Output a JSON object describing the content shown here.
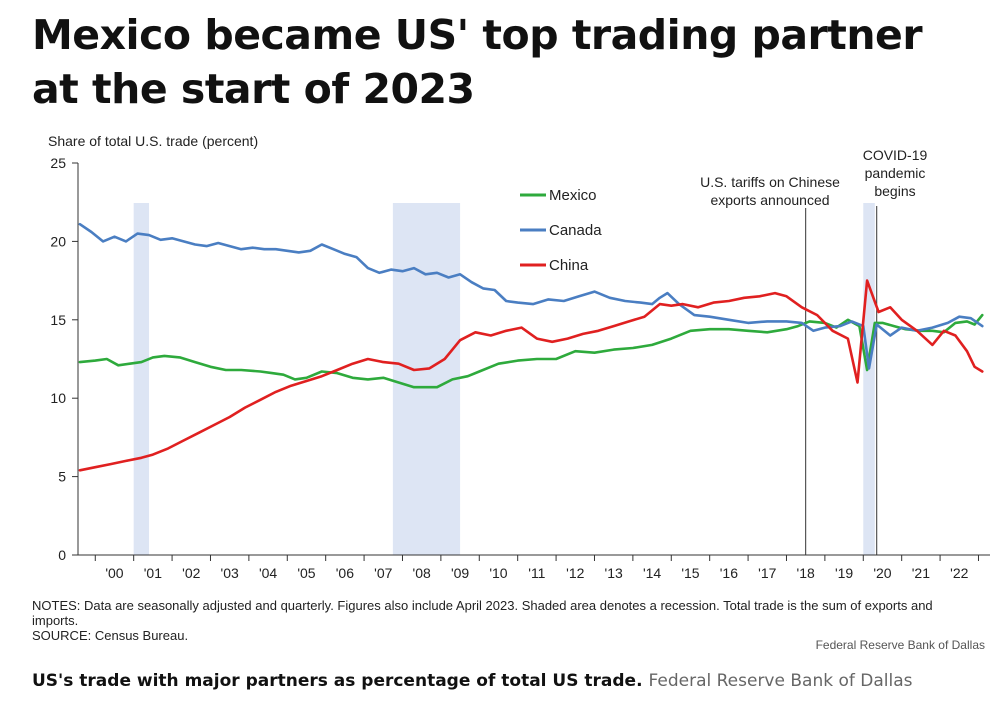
{
  "headline": "Mexico became US' top trading partner at the start of 2023",
  "chart_data": {
    "type": "line",
    "ylabel": "Share of total U.S. trade (percent)",
    "ylim": [
      0,
      25
    ],
    "yticks": [
      0,
      5,
      10,
      15,
      20,
      25
    ],
    "xlim": [
      1999.55,
      2023.3
    ],
    "xticks": [
      {
        "label": "'00",
        "value": 2000.5
      },
      {
        "label": "'01",
        "value": 2001.5
      },
      {
        "label": "'02",
        "value": 2002.5
      },
      {
        "label": "'03",
        "value": 2003.5
      },
      {
        "label": "'04",
        "value": 2004.5
      },
      {
        "label": "'05",
        "value": 2005.5
      },
      {
        "label": "'06",
        "value": 2006.5
      },
      {
        "label": "'07",
        "value": 2007.5
      },
      {
        "label": "'08",
        "value": 2008.5
      },
      {
        "label": "'09",
        "value": 2009.5
      },
      {
        "label": "'10",
        "value": 2010.5
      },
      {
        "label": "'11",
        "value": 2011.5
      },
      {
        "label": "'12",
        "value": 2012.5
      },
      {
        "label": "'13",
        "value": 2013.5
      },
      {
        "label": "'14",
        "value": 2014.5
      },
      {
        "label": "'15",
        "value": 2015.5
      },
      {
        "label": "'16",
        "value": 2016.5
      },
      {
        "label": "'17",
        "value": 2017.5
      },
      {
        "label": "'18",
        "value": 2018.5
      },
      {
        "label": "'19",
        "value": 2019.5
      },
      {
        "label": "'20",
        "value": 2020.5
      },
      {
        "label": "'21",
        "value": 2021.5
      },
      {
        "label": "'22",
        "value": 2022.5
      }
    ],
    "legend_placement": "top-center",
    "recessions": [
      [
        2001.0,
        2001.4
      ],
      [
        2007.75,
        2009.5
      ],
      [
        2020.0,
        2020.3
      ]
    ],
    "events": [
      {
        "x": 2018.5,
        "label_lines": [
          "U.S. tariffs on Chinese",
          "exports announced"
        ]
      },
      {
        "x": 2020.35,
        "label_lines": [
          "COVID-19",
          "pandemic",
          "begins"
        ]
      }
    ],
    "series": [
      {
        "name": "Mexico",
        "color": "#2eaa3c",
        "x": [
          1999.6,
          2000.0,
          2000.3,
          2000.6,
          2000.9,
          2001.2,
          2001.5,
          2001.8,
          2002.2,
          2002.6,
          2003.0,
          2003.4,
          2003.8,
          2004.3,
          2004.6,
          2004.9,
          2005.2,
          2005.5,
          2005.9,
          2006.3,
          2006.7,
          2007.1,
          2007.5,
          2007.9,
          2008.3,
          2008.6,
          2008.9,
          2009.3,
          2009.7,
          2010.0,
          2010.5,
          2011.0,
          2011.5,
          2012.0,
          2012.5,
          2013.0,
          2013.5,
          2014.0,
          2014.5,
          2015.0,
          2015.5,
          2016.0,
          2016.5,
          2017.0,
          2017.5,
          2018.0,
          2018.3,
          2018.6,
          2019.0,
          2019.3,
          2019.6,
          2019.9,
          2020.1,
          2020.3,
          2020.5,
          2020.8,
          2021.1,
          2021.5,
          2021.8,
          2022.1,
          2022.4,
          2022.7,
          2022.9,
          2023.1
        ],
        "values": [
          12.3,
          12.4,
          12.5,
          12.1,
          12.2,
          12.3,
          12.6,
          12.7,
          12.6,
          12.3,
          12.0,
          11.8,
          11.8,
          11.7,
          11.6,
          11.5,
          11.2,
          11.3,
          11.7,
          11.6,
          11.3,
          11.2,
          11.3,
          11.0,
          10.7,
          10.7,
          10.7,
          11.2,
          11.4,
          11.7,
          12.2,
          12.4,
          12.5,
          12.5,
          13.0,
          12.9,
          13.1,
          13.2,
          13.4,
          13.8,
          14.3,
          14.4,
          14.4,
          14.3,
          14.2,
          14.4,
          14.6,
          14.9,
          14.8,
          14.5,
          15.0,
          14.6,
          11.8,
          14.8,
          14.8,
          14.6,
          14.4,
          14.3,
          14.3,
          14.2,
          14.8,
          14.9,
          14.7,
          15.3
        ]
      },
      {
        "name": "Canada",
        "color": "#4a7ec2",
        "x": [
          1999.6,
          1999.9,
          2000.2,
          2000.5,
          2000.8,
          2001.1,
          2001.4,
          2001.7,
          2002.0,
          2002.3,
          2002.6,
          2002.9,
          2003.2,
          2003.5,
          2003.8,
          2004.1,
          2004.4,
          2004.7,
          2005.0,
          2005.3,
          2005.6,
          2005.9,
          2006.2,
          2006.5,
          2006.8,
          2007.1,
          2007.4,
          2007.7,
          2008.0,
          2008.3,
          2008.6,
          2008.9,
          2009.2,
          2009.5,
          2009.8,
          2010.1,
          2010.4,
          2010.7,
          2011.0,
          2011.4,
          2011.8,
          2012.2,
          2012.6,
          2013.0,
          2013.4,
          2013.8,
          2014.2,
          2014.5,
          2014.7,
          2014.9,
          2015.2,
          2015.6,
          2016.0,
          2016.5,
          2017.0,
          2017.5,
          2018.0,
          2018.4,
          2018.7,
          2019.0,
          2019.4,
          2019.7,
          2020.0,
          2020.15,
          2020.35,
          2020.7,
          2021.0,
          2021.4,
          2021.8,
          2022.2,
          2022.5,
          2022.8,
          2023.1
        ],
        "values": [
          21.1,
          20.6,
          20.0,
          20.3,
          20.0,
          20.5,
          20.4,
          20.1,
          20.2,
          20.0,
          19.8,
          19.7,
          19.9,
          19.7,
          19.5,
          19.6,
          19.5,
          19.5,
          19.4,
          19.3,
          19.4,
          19.8,
          19.5,
          19.2,
          19.0,
          18.3,
          18.0,
          18.2,
          18.1,
          18.3,
          17.9,
          18.0,
          17.7,
          17.9,
          17.4,
          17.0,
          16.9,
          16.2,
          16.1,
          16.0,
          16.3,
          16.2,
          16.5,
          16.8,
          16.4,
          16.2,
          16.1,
          16.0,
          16.4,
          16.7,
          16.0,
          15.3,
          15.2,
          15.0,
          14.8,
          14.9,
          14.9,
          14.8,
          14.3,
          14.5,
          14.6,
          14.9,
          14.6,
          11.9,
          14.7,
          14.0,
          14.5,
          14.3,
          14.5,
          14.8,
          15.2,
          15.1,
          14.6
        ]
      },
      {
        "name": "China",
        "color": "#e02020",
        "x": [
          1999.6,
          2000.0,
          2000.4,
          2000.8,
          2001.2,
          2001.5,
          2001.9,
          2002.3,
          2002.7,
          2003.1,
          2003.5,
          2003.9,
          2004.3,
          2004.7,
          2005.1,
          2005.5,
          2005.9,
          2006.3,
          2006.7,
          2007.1,
          2007.5,
          2007.9,
          2008.3,
          2008.7,
          2009.1,
          2009.5,
          2009.9,
          2010.3,
          2010.7,
          2011.1,
          2011.5,
          2011.9,
          2012.3,
          2012.7,
          2013.1,
          2013.5,
          2013.9,
          2014.3,
          2014.7,
          2015.0,
          2015.3,
          2015.7,
          2016.1,
          2016.5,
          2016.9,
          2017.3,
          2017.7,
          2018.0,
          2018.4,
          2018.8,
          2019.2,
          2019.6,
          2019.85,
          2020.1,
          2020.4,
          2020.7,
          2021.0,
          2021.4,
          2021.8,
          2022.1,
          2022.4,
          2022.7,
          2022.9,
          2023.1
        ],
        "values": [
          5.4,
          5.6,
          5.8,
          6.0,
          6.2,
          6.4,
          6.8,
          7.3,
          7.8,
          8.3,
          8.8,
          9.4,
          9.9,
          10.4,
          10.8,
          11.1,
          11.4,
          11.8,
          12.2,
          12.5,
          12.3,
          12.2,
          11.8,
          11.9,
          12.5,
          13.7,
          14.2,
          14.0,
          14.3,
          14.5,
          13.8,
          13.6,
          13.8,
          14.1,
          14.3,
          14.6,
          14.9,
          15.2,
          16.0,
          15.9,
          16.0,
          15.8,
          16.1,
          16.2,
          16.4,
          16.5,
          16.7,
          16.5,
          15.8,
          15.3,
          14.3,
          13.8,
          11.0,
          17.5,
          15.5,
          15.8,
          15.0,
          14.3,
          13.4,
          14.3,
          14.0,
          13.0,
          12.0,
          11.7
        ]
      }
    ]
  },
  "notes": {
    "line1": "NOTES: Data are seasonally adjusted and quarterly. Figures also include April 2023. Shaded area denotes a recession. Total trade is the sum of exports and imports.",
    "line2": "SOURCE: Census Bureau."
  },
  "fed_credit": "Federal Reserve  Bank of Dallas",
  "caption": {
    "main": "US's trade with major partners as percentage of total US trade.",
    "credit": "Federal Reserve Bank of Dallas"
  }
}
